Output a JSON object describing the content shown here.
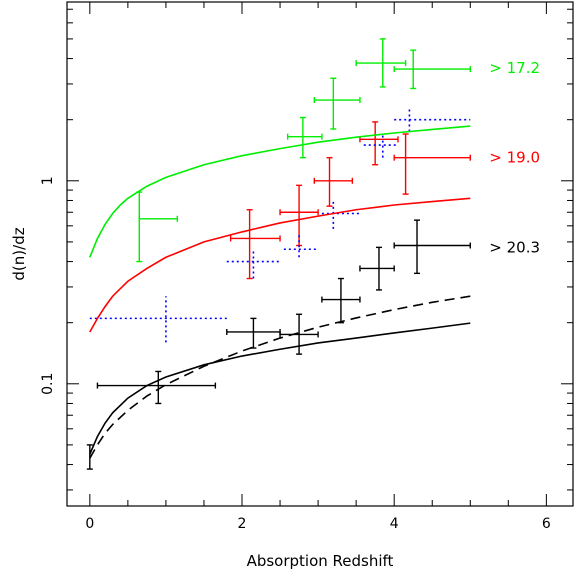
{
  "chart_data": {
    "type": "scatter",
    "title": "",
    "xlabel": "Absorption Redshift",
    "ylabel": "d(n)/dz",
    "xlim": [
      -0.3,
      6.35
    ],
    "ylim": [
      0.025,
      7.6
    ],
    "yscale": "log",
    "grid": false,
    "legend": "none",
    "x_ticks": [
      0,
      2,
      4,
      6
    ],
    "x_tick_labels": [
      "0",
      "2",
      "4",
      "6"
    ],
    "y_ticks": [
      0.1,
      1
    ],
    "y_tick_labels": [
      "0.1",
      "1"
    ],
    "annotations": [
      {
        "text": "> 17.2",
        "color": "#00ee00",
        "x": 5.25,
        "y": 3.6
      },
      {
        "text": "> 19.0",
        "color": "#ff0000",
        "x": 5.25,
        "y": 1.3
      },
      {
        "text": "> 20.3",
        "color": "#000000",
        "x": 5.25,
        "y": 0.47
      }
    ],
    "series": [
      {
        "name": "> 17.2",
        "color": "#00ee00",
        "style": "errorbar",
        "points": [
          {
            "x": 0.65,
            "y": 0.65,
            "xerr": [
              0.65,
              1.15
            ],
            "yerr": [
              0.4,
              0.88
            ]
          },
          {
            "x": 2.8,
            "y": 1.65,
            "xerr": [
              2.6,
              3.05
            ],
            "yerr": [
              1.3,
              2.05
            ]
          },
          {
            "x": 3.2,
            "y": 2.5,
            "xerr": [
              2.95,
              3.55
            ],
            "yerr": [
              1.8,
              3.2
            ]
          },
          {
            "x": 3.85,
            "y": 3.8,
            "xerr": [
              3.5,
              4.15
            ],
            "yerr": [
              2.9,
              5.0
            ]
          },
          {
            "x": 4.25,
            "y": 3.55,
            "xerr": [
              4.0,
              5.0
            ],
            "yerr": [
              2.85,
              4.4
            ]
          }
        ]
      },
      {
        "name": "> 19.0",
        "color": "#ff0000",
        "style": "errorbar",
        "points": [
          {
            "x": 2.1,
            "y": 0.52,
            "xerr": [
              1.85,
              2.5
            ],
            "yerr": [
              0.33,
              0.72
            ]
          },
          {
            "x": 2.75,
            "y": 0.7,
            "xerr": [
              2.5,
              3.0
            ],
            "yerr": [
              0.48,
              0.95
            ]
          },
          {
            "x": 3.15,
            "y": 1.0,
            "xerr": [
              2.95,
              3.45
            ],
            "yerr": [
              0.75,
              1.3
            ]
          },
          {
            "x": 3.75,
            "y": 1.6,
            "xerr": [
              3.55,
              4.05
            ],
            "yerr": [
              1.2,
              1.95
            ]
          },
          {
            "x": 4.15,
            "y": 1.3,
            "xerr": [
              4.0,
              5.0
            ],
            "yerr": [
              0.86,
              1.7
            ]
          }
        ]
      },
      {
        "name": "> 20.3",
        "color": "#000000",
        "style": "errorbar",
        "points": [
          {
            "x": 0.0,
            "y": 0.044,
            "xerr": [
              0.0,
              0.0
            ],
            "yerr": [
              0.038,
              0.05
            ]
          },
          {
            "x": 0.9,
            "y": 0.098,
            "xerr": [
              0.1,
              1.65
            ],
            "yerr": [
              0.08,
              0.115
            ]
          },
          {
            "x": 2.15,
            "y": 0.18,
            "xerr": [
              1.8,
              2.5
            ],
            "yerr": [
              0.15,
              0.21
            ]
          },
          {
            "x": 2.75,
            "y": 0.175,
            "xerr": [
              2.5,
              3.0
            ],
            "yerr": [
              0.14,
              0.22
            ]
          },
          {
            "x": 3.3,
            "y": 0.26,
            "xerr": [
              3.05,
              3.55
            ],
            "yerr": [
              0.2,
              0.33
            ]
          },
          {
            "x": 3.8,
            "y": 0.37,
            "xerr": [
              3.55,
              4.0
            ],
            "yerr": [
              0.29,
              0.47
            ]
          },
          {
            "x": 4.3,
            "y": 0.48,
            "xerr": [
              4.0,
              5.0
            ],
            "yerr": [
              0.35,
              0.64
            ]
          }
        ]
      },
      {
        "name": "",
        "color": "#0000ff",
        "style": "errorbar-dotted",
        "points": [
          {
            "x": 1.0,
            "y": 0.21,
            "xerr": [
              0.0,
              1.8
            ],
            "yerr": [
              0.16,
              0.27
            ]
          },
          {
            "x": 2.15,
            "y": 0.4,
            "xerr": [
              1.8,
              2.5
            ],
            "yerr": [
              0.33,
              0.45
            ]
          },
          {
            "x": 2.75,
            "y": 0.46,
            "xerr": [
              2.55,
              3.0
            ],
            "yerr": [
              0.42,
              0.55
            ]
          },
          {
            "x": 3.2,
            "y": 0.69,
            "xerr": [
              3.05,
              3.55
            ],
            "yerr": [
              0.58,
              0.8
            ]
          },
          {
            "x": 3.85,
            "y": 1.5,
            "xerr": [
              3.6,
              4.05
            ],
            "yerr": [
              1.3,
              1.7
            ]
          },
          {
            "x": 4.2,
            "y": 2.0,
            "xerr": [
              4.0,
              5.0
            ],
            "yerr": [
              1.75,
              2.25
            ]
          }
        ]
      },
      {
        "name": "",
        "color": "#00ee00",
        "style": "line",
        "x": [
          0,
          0.1,
          0.2,
          0.3,
          0.4,
          0.5,
          0.75,
          1.0,
          1.5,
          2.0,
          2.5,
          3.0,
          3.5,
          4.0,
          4.5,
          5.0
        ],
        "y": [
          0.42,
          0.52,
          0.61,
          0.69,
          0.76,
          0.82,
          0.94,
          1.04,
          1.2,
          1.33,
          1.44,
          1.55,
          1.64,
          1.72,
          1.79,
          1.86
        ]
      },
      {
        "name": "",
        "color": "#ff0000",
        "style": "line",
        "x": [
          0,
          0.1,
          0.2,
          0.3,
          0.5,
          0.75,
          1.0,
          1.5,
          2.0,
          2.5,
          3.0,
          3.5,
          4.0,
          4.5,
          5.0
        ],
        "y": [
          0.18,
          0.21,
          0.24,
          0.27,
          0.32,
          0.37,
          0.42,
          0.5,
          0.56,
          0.62,
          0.67,
          0.72,
          0.76,
          0.79,
          0.82
        ]
      },
      {
        "name": "",
        "color": "#000000",
        "style": "line",
        "x": [
          0,
          0.1,
          0.2,
          0.3,
          0.5,
          0.75,
          1.0,
          1.5,
          2.0,
          2.5,
          3.0,
          3.5,
          4.0,
          4.5,
          5.0
        ],
        "y": [
          0.045,
          0.055,
          0.064,
          0.072,
          0.085,
          0.098,
          0.108,
          0.124,
          0.137,
          0.148,
          0.159,
          0.168,
          0.178,
          0.188,
          0.199
        ]
      },
      {
        "name": "",
        "color": "#000000",
        "style": "dashed",
        "x": [
          0,
          0.1,
          0.2,
          0.3,
          0.5,
          0.75,
          1.0,
          1.5,
          2.0,
          2.5,
          3.0,
          3.5,
          4.0,
          4.5,
          5.0
        ],
        "y": [
          0.043,
          0.05,
          0.057,
          0.063,
          0.074,
          0.087,
          0.099,
          0.122,
          0.145,
          0.168,
          0.19,
          0.211,
          0.232,
          0.252,
          0.27
        ]
      }
    ]
  }
}
